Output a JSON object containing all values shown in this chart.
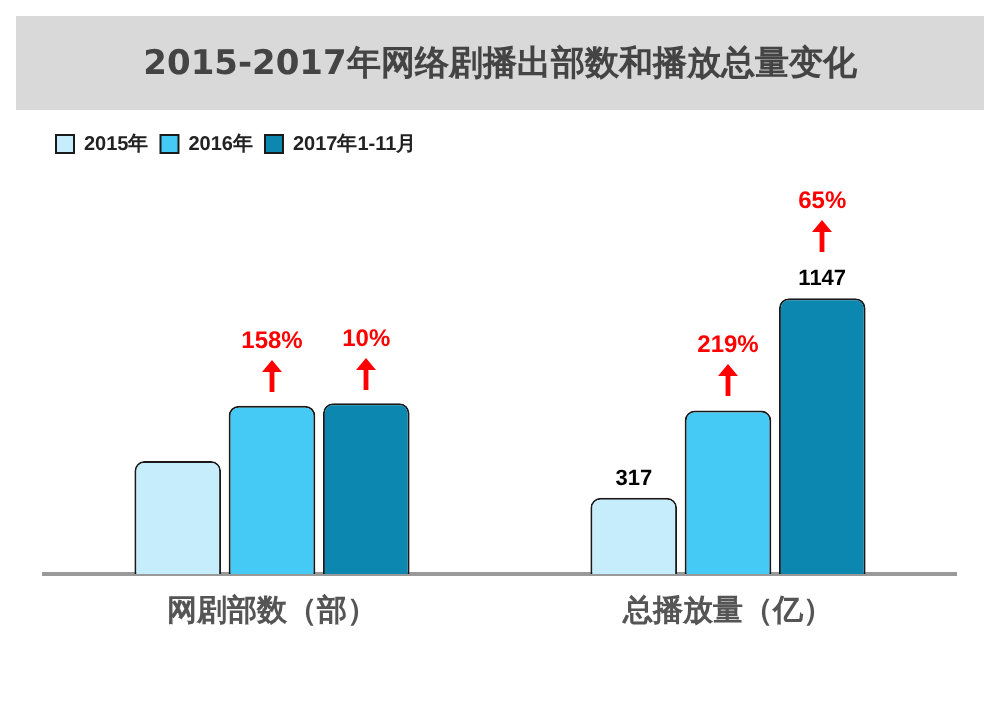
{
  "chart_data": {
    "type": "bar",
    "title": "2015-2017年网络剧播出部数和播放总量变化",
    "categories": [
      "网剧部数（部）",
      "总播放量（亿）"
    ],
    "legend": "top left",
    "grid": false,
    "series": [
      {
        "name": "2015年",
        "color": "#c5edfb",
        "values": [
          470,
          317
        ],
        "value_labels": [
          null,
          "317"
        ]
      },
      {
        "name": "2016年",
        "color": "#45c9f5",
        "values": [
          700,
          680
        ],
        "value_labels": [
          null,
          null
        ]
      },
      {
        "name": "2017年1-11月",
        "color": "#0b87b0",
        "values": [
          710,
          1147
        ],
        "value_labels": [
          null,
          "1147"
        ]
      }
    ],
    "annotations": [
      "158%",
      "10%",
      "219%",
      "65%"
    ]
  }
}
